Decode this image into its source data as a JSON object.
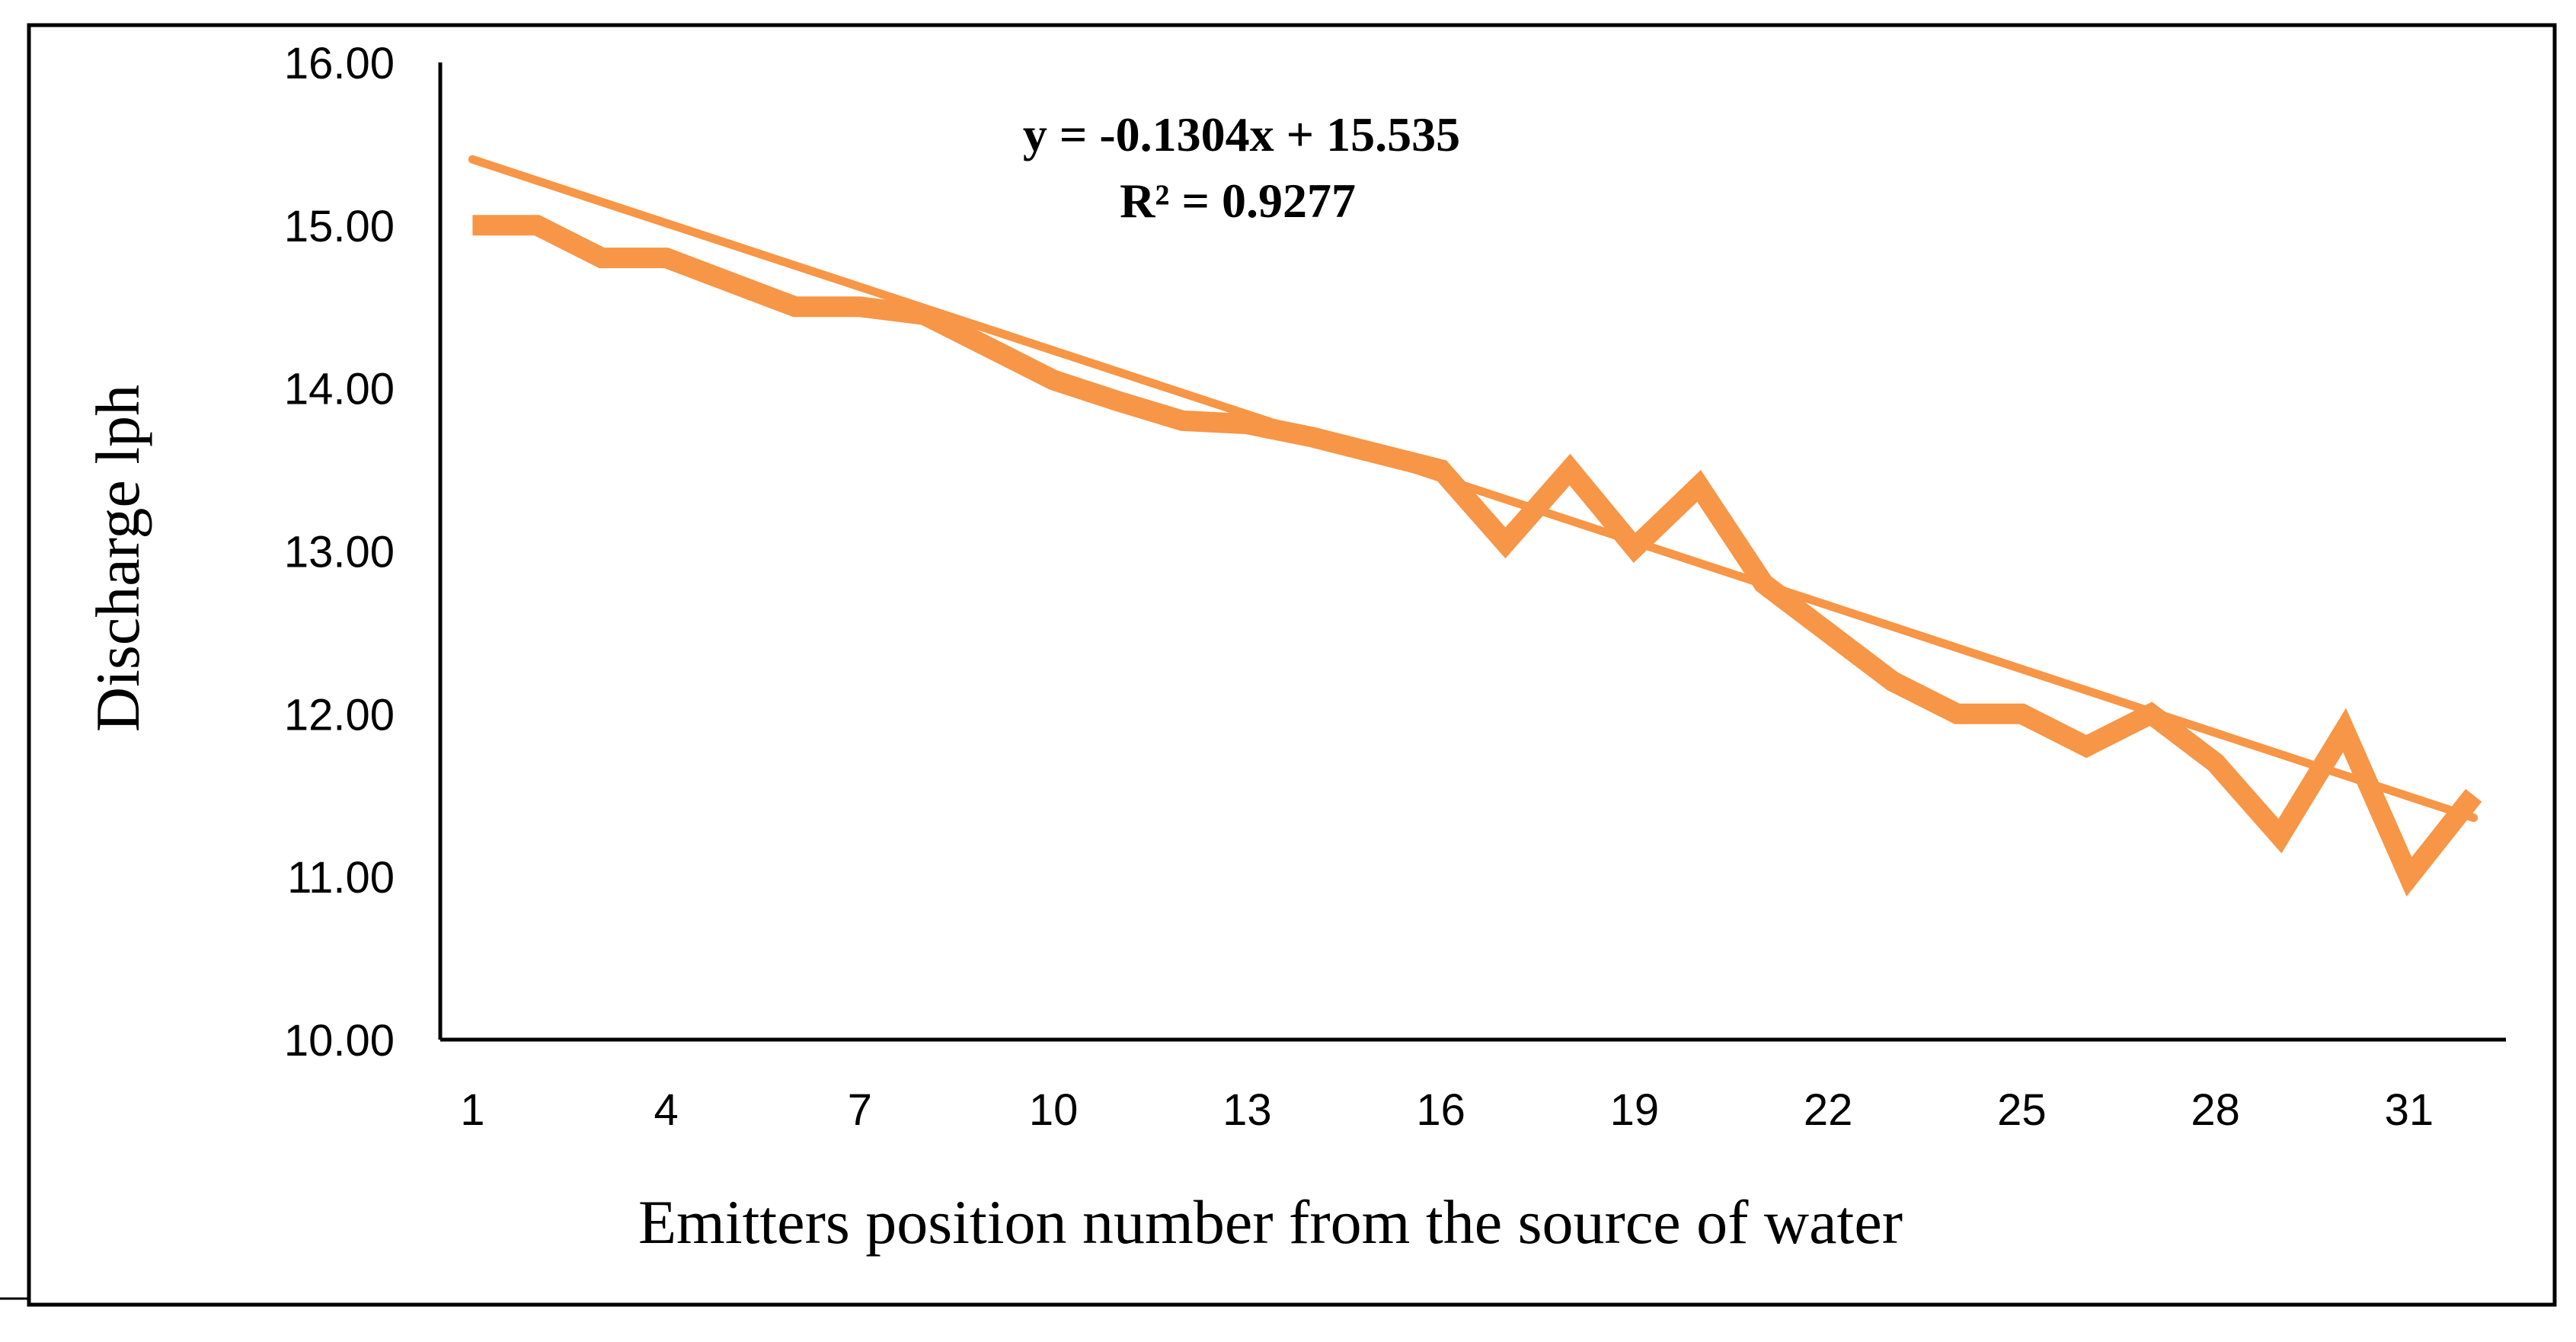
{
  "chart_data": {
    "type": "line",
    "title": "",
    "xlabel": "Emitters position number from the source of water",
    "ylabel": "Discharge lph",
    "x": [
      1,
      2,
      3,
      4,
      5,
      6,
      7,
      8,
      9,
      10,
      11,
      12,
      13,
      14,
      15,
      16,
      17,
      18,
      19,
      20,
      21,
      22,
      23,
      24,
      25,
      26,
      27,
      28,
      29,
      30,
      31,
      32
    ],
    "series": [
      {
        "name": "Discharge",
        "values": [
          15.0,
          15.0,
          14.8,
          14.8,
          14.65,
          14.5,
          14.5,
          14.45,
          14.25,
          14.05,
          13.92,
          13.8,
          13.78,
          13.7,
          13.6,
          13.5,
          13.05,
          13.5,
          13.02,
          13.4,
          12.8,
          12.5,
          12.2,
          12.0,
          12.0,
          11.8,
          12.0,
          11.7,
          11.25,
          11.9,
          11.0,
          11.5
        ]
      }
    ],
    "trendline": {
      "slope": -0.1304,
      "intercept": 15.535,
      "equation_label": "y = -0.1304x + 15.535",
      "r2_label": "R² = 0.9277"
    },
    "xlim": [
      0.5,
      32.5
    ],
    "ylim": [
      10.0,
      16.0
    ],
    "x_ticks": [
      1,
      4,
      7,
      10,
      13,
      16,
      19,
      22,
      25,
      28,
      31
    ],
    "x_tick_labels": [
      "1",
      "4",
      "7",
      "10",
      "13",
      "16",
      "19",
      "22",
      "25",
      "28",
      "31"
    ],
    "y_ticks": [
      10,
      11,
      12,
      13,
      14,
      15,
      16
    ],
    "y_tick_labels": [
      "10.00",
      "11.00",
      "12.00",
      "13.00",
      "14.00",
      "15.00",
      "16.00"
    ],
    "grid": false,
    "legend": "none",
    "line_color": "#F79646"
  }
}
